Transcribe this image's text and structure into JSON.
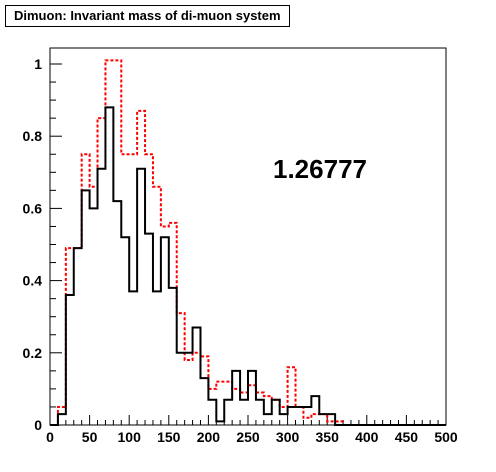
{
  "chart_data": {
    "type": "histogram",
    "title": "Dimuon: Invariant mass of di-muon system",
    "annotation": "1.26777",
    "xlim": [
      0,
      500
    ],
    "ylim": [
      0,
      1.0
    ],
    "bin_width": 10,
    "x_ticks": [
      "0",
      "50",
      "100",
      "150",
      "200",
      "250",
      "300",
      "350",
      "400",
      "450",
      "500"
    ],
    "y_ticks": [
      "0",
      "0.2",
      "0.4",
      "0.6",
      "0.8",
      "1"
    ],
    "grid": false,
    "series": [
      {
        "color": "#000000",
        "style": "solid",
        "values": [
          0.0,
          0.03,
          0.36,
          0.49,
          0.65,
          0.6,
          0.71,
          0.88,
          0.62,
          0.52,
          0.37,
          0.71,
          0.53,
          0.37,
          0.52,
          0.38,
          0.2,
          0.2,
          0.27,
          0.13,
          0.07,
          0.01,
          0.07,
          0.15,
          0.07,
          0.15,
          0.07,
          0.03,
          0.07,
          0.03,
          0.05,
          0.05,
          0.05,
          0.08,
          0.03,
          0.03,
          0.0,
          0.0,
          0.0,
          0.0,
          0.0,
          0.0,
          0.0,
          0.0,
          0.0,
          0.0,
          0.0,
          0.0,
          0.0,
          0.0
        ]
      },
      {
        "color": "#ff0000",
        "style": "dashed",
        "values": [
          0.0,
          0.05,
          0.49,
          0.49,
          0.75,
          0.66,
          0.85,
          1.01,
          1.01,
          0.75,
          0.75,
          0.87,
          0.75,
          0.66,
          0.55,
          0.56,
          0.31,
          0.18,
          0.2,
          0.19,
          0.1,
          0.12,
          0.12,
          0.1,
          0.09,
          0.11,
          0.09,
          0.08,
          0.07,
          0.05,
          0.16,
          0.05,
          0.02,
          0.03,
          0.03,
          0.01,
          0.01,
          0.0,
          0.0,
          0.0,
          0.0,
          0.0,
          0.0,
          0.0,
          0.0,
          0.0,
          0.0,
          0.0,
          0.0,
          0.0
        ]
      }
    ]
  }
}
